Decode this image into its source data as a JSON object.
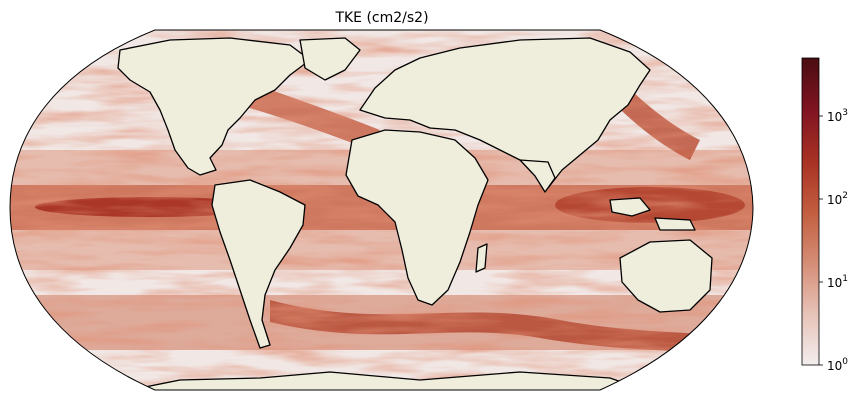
{
  "map": {
    "title": "TKE (cm2/s2)",
    "projection": "robinson",
    "field": "ocean turbulent kinetic energy",
    "land_color": "#efeddb",
    "coastline_color": "#000000",
    "ocean_low_color": "#f2eeed",
    "ocean_high_color": "#b4402a"
  },
  "colorbar": {
    "scale": "log",
    "range": [
      1,
      5000
    ],
    "ticks": [
      {
        "value": 1,
        "base": "10",
        "exp": "0"
      },
      {
        "value": 10,
        "base": "10",
        "exp": "1"
      },
      {
        "value": 100,
        "base": "10",
        "exp": "2"
      },
      {
        "value": 1000,
        "base": "10",
        "exp": "3"
      }
    ],
    "colors": [
      "#f3eeee",
      "#e7c4ba",
      "#d58e77",
      "#c25d3f",
      "#a93224",
      "#801421",
      "#4a0d12"
    ]
  }
}
